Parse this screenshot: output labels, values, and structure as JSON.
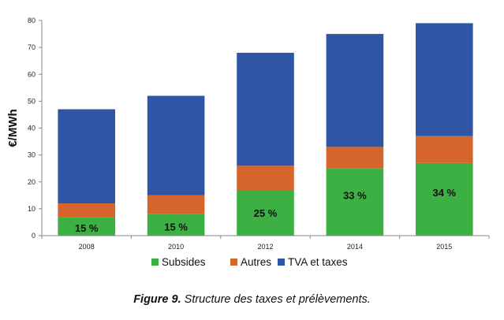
{
  "chart_data": {
    "type": "bar",
    "stacked": true,
    "categories": [
      "2008",
      "2010",
      "2012",
      "2014",
      "2015"
    ],
    "ylabel": "€/MWh",
    "ylim": [
      0,
      80
    ],
    "yticks": [
      "0",
      "10",
      "20",
      "30",
      "40",
      "50",
      "60",
      "70",
      "80"
    ],
    "grid": false,
    "legend": "bottom",
    "series": [
      {
        "name": "Subsides",
        "color": "#3cb043",
        "values": [
          7,
          8,
          17,
          25,
          27
        ]
      },
      {
        "name": "Autres",
        "color": "#d5652a",
        "values": [
          5,
          7,
          9,
          8,
          10
        ]
      },
      {
        "name": "TVA et taxes",
        "color": "#2f55a4",
        "values": [
          35,
          37,
          42,
          42,
          42
        ]
      }
    ],
    "bar_labels": [
      "15 %",
      "15 %",
      "25 %",
      "33 %",
      "34 %"
    ]
  },
  "caption": {
    "prefix": "Figure 9.",
    "text": " Structure des taxes et prélèvements."
  }
}
